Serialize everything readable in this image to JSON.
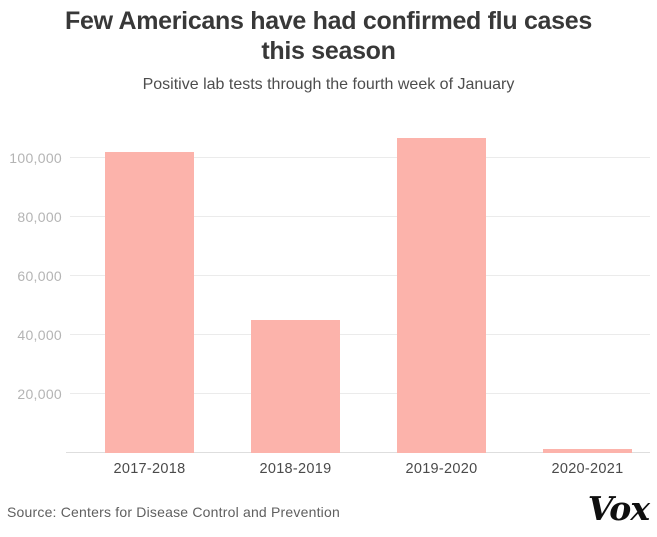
{
  "header": {
    "title_line1": "Few Americans have had confirmed flu cases",
    "title_line2": "this season",
    "subtitle": "Positive lab tests through the fourth week of January"
  },
  "chart_data": {
    "type": "bar",
    "title": "Few Americans have had confirmed flu cases this season",
    "subtitle": "Positive lab tests through the fourth week of January",
    "categories": [
      "2017-2018",
      "2018-2019",
      "2019-2020",
      "2020-2021"
    ],
    "values": [
      102000,
      45000,
      107000,
      1500
    ],
    "xlabel": "",
    "ylabel": "",
    "ylim": [
      0,
      113000
    ],
    "yticks": [
      20000,
      40000,
      60000,
      80000,
      100000
    ],
    "ytick_labels": [
      "20,000",
      "40,000",
      "60,000",
      "80,000",
      "100,000"
    ],
    "grid": "horizontal-only",
    "legend": "none",
    "bar_color": "#fcb3ab"
  },
  "footer": {
    "source": "Source: Centers for Disease Control and Prevention",
    "logo": "Vox"
  },
  "colors": {
    "bar": "#fcb3ab",
    "gridline": "#ebebeb",
    "baseline": "#dedede",
    "y_label": "#b4b4b4",
    "x_label": "#4a4a4a",
    "title": "#383838",
    "subtitle": "#4d4d4d",
    "source": "#5f5f5f",
    "logo": "#0f0f0f"
  }
}
